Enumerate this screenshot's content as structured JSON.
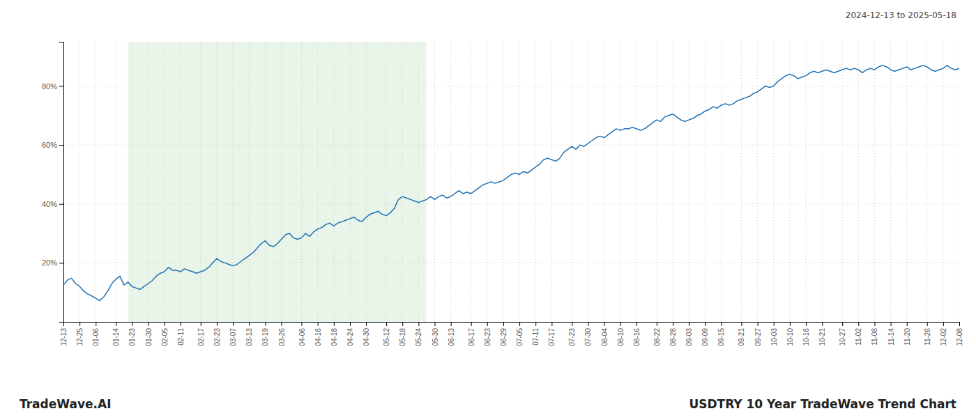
{
  "chart_data": {
    "type": "line",
    "title": "USDTRY 10 Year TradeWave Trend Chart",
    "subtitle": "2024-12-13 to 2025-05-18",
    "annotations": [
      "TradeWave.AI"
    ],
    "color": "#2171b5",
    "grid": true,
    "ylim": [
      0,
      95
    ],
    "yticks": [
      {
        "value": 20,
        "label": "20%"
      },
      {
        "value": 40,
        "label": "40%"
      },
      {
        "value": 60,
        "label": "60%"
      },
      {
        "value": 80,
        "label": "80%"
      }
    ],
    "shaded_range": {
      "x": [
        15.984,
        89.91
      ],
      "color": "#d6edd6"
    },
    "categories": [
      "12-13",
      null,
      null,
      null,
      "12-25",
      null,
      null,
      null,
      "01-06",
      null,
      null,
      null,
      null,
      "01-14",
      null,
      null,
      null,
      "01-23",
      null,
      null,
      null,
      "01-30",
      null,
      null,
      null,
      "02-05",
      null,
      null,
      null,
      "02-11",
      null,
      null,
      null,
      null,
      "02-17",
      null,
      null,
      null,
      "02-23",
      null,
      null,
      null,
      "03-07",
      null,
      null,
      null,
      "03-13",
      null,
      null,
      null,
      "03-19",
      null,
      null,
      null,
      "03-26",
      null,
      null,
      null,
      null,
      "04-06",
      null,
      null,
      null,
      "04-16",
      null,
      null,
      null,
      "04-18",
      null,
      null,
      null,
      "04-24",
      null,
      null,
      null,
      "04-30",
      null,
      null,
      null,
      null,
      "05-12",
      null,
      null,
      null,
      "05-18",
      null,
      null,
      null,
      "05-24",
      null,
      null,
      null,
      "05-30",
      null,
      null,
      null,
      "06-13",
      null,
      null,
      null,
      null,
      "06-17",
      null,
      null,
      null,
      "06-23",
      null,
      null,
      null,
      "06-29",
      null,
      null,
      null,
      "07-05",
      null,
      null,
      null,
      "07-11",
      null,
      null,
      null,
      "07-17",
      null,
      null,
      null,
      null,
      "07-23",
      null,
      null,
      null,
      "07-30",
      null,
      null,
      null,
      "08-04",
      null,
      null,
      null,
      "08-10",
      null,
      null,
      null,
      "08-16",
      null,
      null,
      null,
      null,
      "08-22",
      null,
      null,
      null,
      "08-28",
      null,
      null,
      null,
      "09-03",
      null,
      null,
      null,
      "09-09",
      null,
      null,
      null,
      "09-15",
      null,
      null,
      null,
      null,
      "09-21",
      null,
      null,
      null,
      "09-27",
      null,
      null,
      null,
      "10-03",
      null,
      null,
      null,
      "10-10",
      null,
      null,
      null,
      "10-16",
      null,
      null,
      null,
      "10-21",
      null,
      null,
      null,
      null,
      "10-27",
      null,
      null,
      null,
      "11-02",
      null,
      null,
      null,
      "11-08",
      null,
      null,
      null,
      "11-14",
      null,
      null,
      null,
      "11-20",
      null,
      null,
      null,
      null,
      "11-26",
      null,
      null,
      null,
      "12-02",
      null,
      null,
      null,
      "12-08"
    ],
    "values": [
      12.5,
      14.2,
      14.8,
      13.0,
      12.0,
      10.5,
      9.5,
      8.8,
      8.0,
      7.2,
      8.5,
      10.5,
      13.0,
      14.5,
      15.5,
      12.5,
      13.5,
      12.0,
      11.5,
      11.0,
      12.0,
      13.0,
      14.0,
      15.5,
      16.5,
      17.0,
      18.5,
      17.5,
      17.5,
      17.0,
      18.0,
      17.5,
      17.0,
      16.5,
      17.0,
      17.5,
      18.5,
      20.0,
      21.5,
      20.5,
      20.0,
      19.5,
      19.0,
      19.5,
      20.5,
      21.5,
      22.5,
      23.5,
      25.0,
      26.5,
      27.5,
      26.0,
      25.5,
      26.5,
      28.0,
      29.5,
      30.0,
      28.5,
      28.0,
      28.5,
      30.0,
      29.0,
      30.5,
      31.5,
      32.0,
      33.0,
      33.5,
      32.5,
      33.5,
      34.0,
      34.5,
      35.0,
      35.5,
      34.5,
      34.0,
      35.5,
      36.5,
      37.0,
      37.5,
      36.5,
      36.0,
      37.0,
      38.5,
      41.5,
      42.5,
      42.0,
      41.5,
      41.0,
      40.5,
      41.0,
      41.5,
      42.5,
      41.5,
      42.5,
      43.0,
      42.0,
      42.5,
      43.5,
      44.5,
      43.5,
      44.0,
      43.5,
      44.5,
      45.5,
      46.5,
      47.0,
      47.5,
      47.0,
      47.5,
      48.0,
      49.0,
      50.0,
      50.5,
      50.0,
      51.0,
      50.5,
      51.5,
      52.5,
      53.5,
      55.0,
      55.5,
      55.0,
      54.5,
      55.5,
      57.5,
      58.5,
      59.5,
      58.5,
      60.0,
      59.5,
      60.5,
      61.5,
      62.5,
      63.0,
      62.5,
      63.5,
      64.5,
      65.5,
      65.0,
      65.5,
      65.5,
      66.0,
      65.5,
      65.0,
      65.5,
      66.5,
      67.5,
      68.5,
      68.0,
      69.5,
      70.0,
      70.5,
      69.5,
      68.5,
      68.0,
      68.5,
      69.0,
      70.0,
      70.5,
      71.5,
      72.0,
      73.0,
      72.5,
      73.5,
      74.0,
      73.5,
      74.0,
      75.0,
      75.5,
      76.0,
      76.5,
      77.5,
      78.0,
      79.0,
      80.0,
      79.5,
      80.0,
      81.5,
      82.5,
      83.5,
      84.0,
      83.5,
      82.5,
      83.0,
      83.5,
      84.5,
      85.0,
      84.5,
      85.0,
      85.5,
      85.0,
      84.5,
      85.0,
      85.5,
      86.0,
      85.5,
      86.0,
      85.5,
      84.5,
      85.5,
      86.0,
      85.5,
      86.5,
      87.0,
      86.5,
      85.5,
      85.0,
      85.5,
      86.0,
      86.5,
      85.5,
      86.0,
      86.5,
      87.0,
      86.5,
      85.5,
      85.0,
      85.5,
      86.0,
      87.0,
      86.0,
      85.5,
      86.0
    ]
  }
}
